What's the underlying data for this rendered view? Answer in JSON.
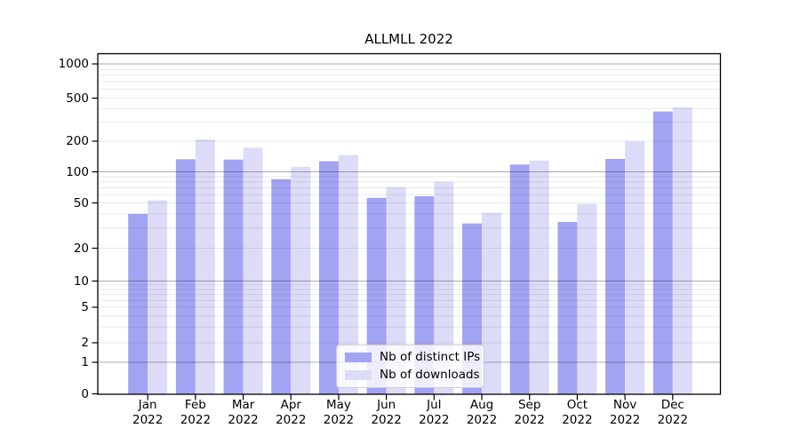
{
  "chart_data": {
    "type": "bar",
    "title": "ALLMLL 2022",
    "categories": [
      "Jan",
      "Feb",
      "Mar",
      "Apr",
      "May",
      "Jun",
      "Jul",
      "Aug",
      "Sep",
      "Oct",
      "Nov",
      "Dec"
    ],
    "year_label": "2022",
    "series": [
      {
        "name": "Nb of distinct IPs",
        "color": "#a3a3f3",
        "values": [
          40,
          133,
          132,
          85,
          127,
          56,
          58,
          33,
          118,
          34,
          134,
          376
        ]
      },
      {
        "name": "Nb of downloads",
        "color": "#dcdcf8",
        "values": [
          53,
          208,
          173,
          112,
          146,
          71,
          80,
          41,
          129,
          49,
          199,
          410
        ]
      }
    ],
    "yscale": "symlog",
    "yticks": [
      0,
      1,
      2,
      5,
      10,
      20,
      50,
      100,
      200,
      500,
      1000
    ],
    "ylim": [
      0,
      1250
    ],
    "grid": true,
    "legend_position": "lower-center"
  }
}
